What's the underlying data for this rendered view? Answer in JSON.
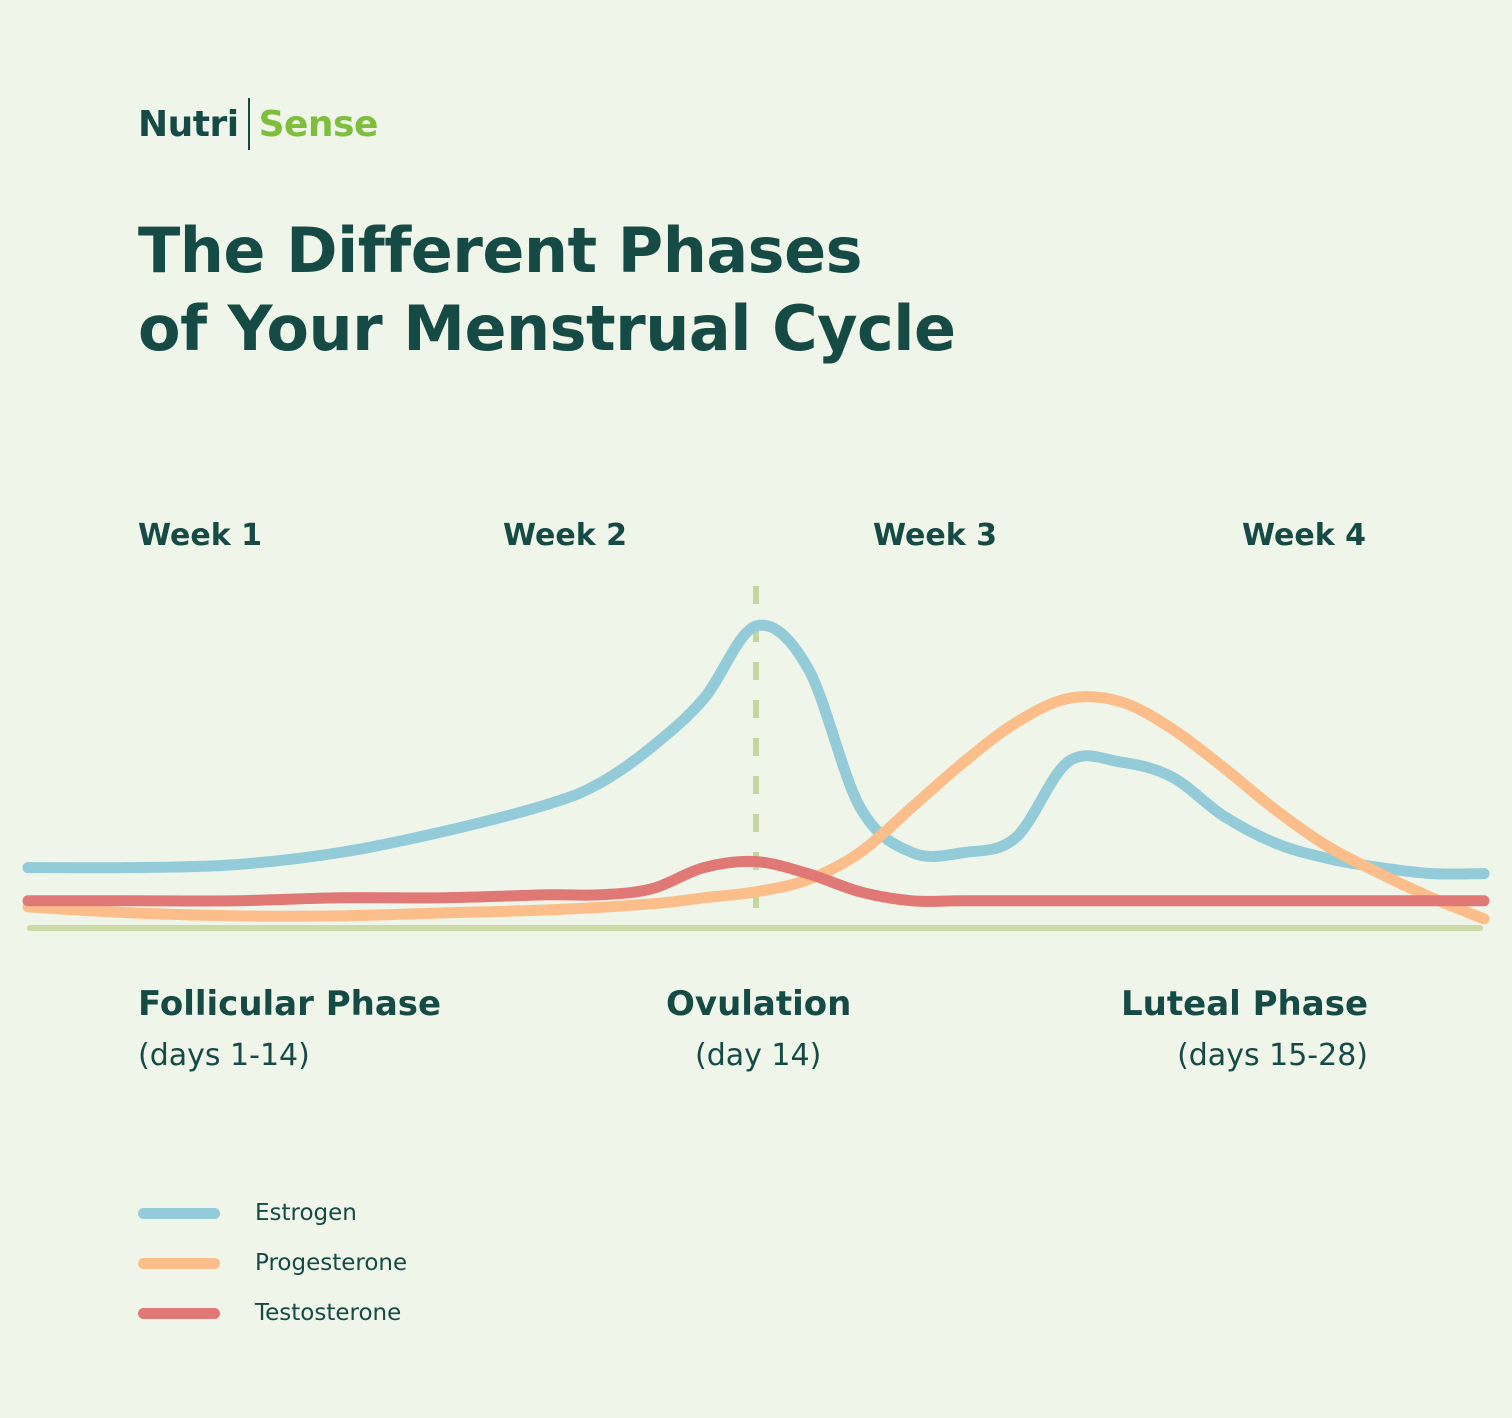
{
  "logo": {
    "part1": "Nutri",
    "part2": "Sense"
  },
  "title": {
    "line1": "The Different Phases",
    "line2": "of Your Menstrual Cycle"
  },
  "colors": {
    "background": "#eff5e9",
    "text": "#154a45",
    "brand_green": "#7fbe3c",
    "axis": "#cbdaa7",
    "ovulation_line": "#c5d5a0"
  },
  "chart_data": {
    "type": "line",
    "title": "The Different Phases of Your Menstrual Cycle",
    "xlabel": "",
    "ylabel": "",
    "grid": false,
    "legend_position": "bottom-left",
    "x_axis": {
      "unit": "day",
      "range": [
        0,
        28
      ]
    },
    "y_axis": {
      "range": [
        0,
        100
      ],
      "ticks_shown": false
    },
    "week_labels": [
      "Week 1",
      "Week 2",
      "Week 3",
      "Week 4"
    ],
    "ovulation_day": 14,
    "phases": [
      {
        "name": "Follicular Phase",
        "days": "(days 1-14)"
      },
      {
        "name": "Ovulation",
        "days": "(day 14)"
      },
      {
        "name": "Luteal Phase",
        "days": "(days 15-28)"
      }
    ],
    "series": [
      {
        "name": "Estrogen",
        "color": "#94cbd9",
        "points": [
          [
            0,
            20
          ],
          [
            2,
            20
          ],
          [
            4,
            21
          ],
          [
            6,
            25
          ],
          [
            8,
            32
          ],
          [
            10,
            41
          ],
          [
            11,
            48
          ],
          [
            12,
            60
          ],
          [
            13,
            76
          ],
          [
            14,
            100
          ],
          [
            15,
            86
          ],
          [
            16,
            40
          ],
          [
            17,
            25
          ],
          [
            18,
            25
          ],
          [
            19,
            30
          ],
          [
            20,
            55
          ],
          [
            21,
            55
          ],
          [
            22,
            50
          ],
          [
            23,
            37
          ],
          [
            24,
            28
          ],
          [
            25,
            23
          ],
          [
            26,
            20
          ],
          [
            27,
            18
          ],
          [
            28,
            18
          ]
        ]
      },
      {
        "name": "Progesterone",
        "color": "#fbbe8b",
        "points": [
          [
            0,
            7
          ],
          [
            2,
            5
          ],
          [
            4,
            4
          ],
          [
            6,
            4
          ],
          [
            8,
            5
          ],
          [
            10,
            6
          ],
          [
            12,
            8
          ],
          [
            13,
            10
          ],
          [
            14,
            12
          ],
          [
            15,
            16
          ],
          [
            16,
            25
          ],
          [
            17,
            40
          ],
          [
            18,
            55
          ],
          [
            19,
            68
          ],
          [
            20,
            76
          ],
          [
            21,
            75
          ],
          [
            22,
            66
          ],
          [
            23,
            53
          ],
          [
            24,
            39
          ],
          [
            25,
            27
          ],
          [
            26,
            18
          ],
          [
            27,
            10
          ],
          [
            28,
            3
          ]
        ]
      },
      {
        "name": "Testosterone",
        "color": "#e07876",
        "points": [
          [
            0,
            9
          ],
          [
            2,
            9
          ],
          [
            4,
            9
          ],
          [
            6,
            10
          ],
          [
            8,
            10
          ],
          [
            10,
            11
          ],
          [
            11,
            11
          ],
          [
            12,
            13
          ],
          [
            13,
            20
          ],
          [
            14,
            22
          ],
          [
            15,
            18
          ],
          [
            16,
            12
          ],
          [
            17,
            9
          ],
          [
            18,
            9
          ],
          [
            20,
            9
          ],
          [
            22,
            9
          ],
          [
            24,
            9
          ],
          [
            26,
            9
          ],
          [
            28,
            9
          ]
        ]
      }
    ]
  }
}
